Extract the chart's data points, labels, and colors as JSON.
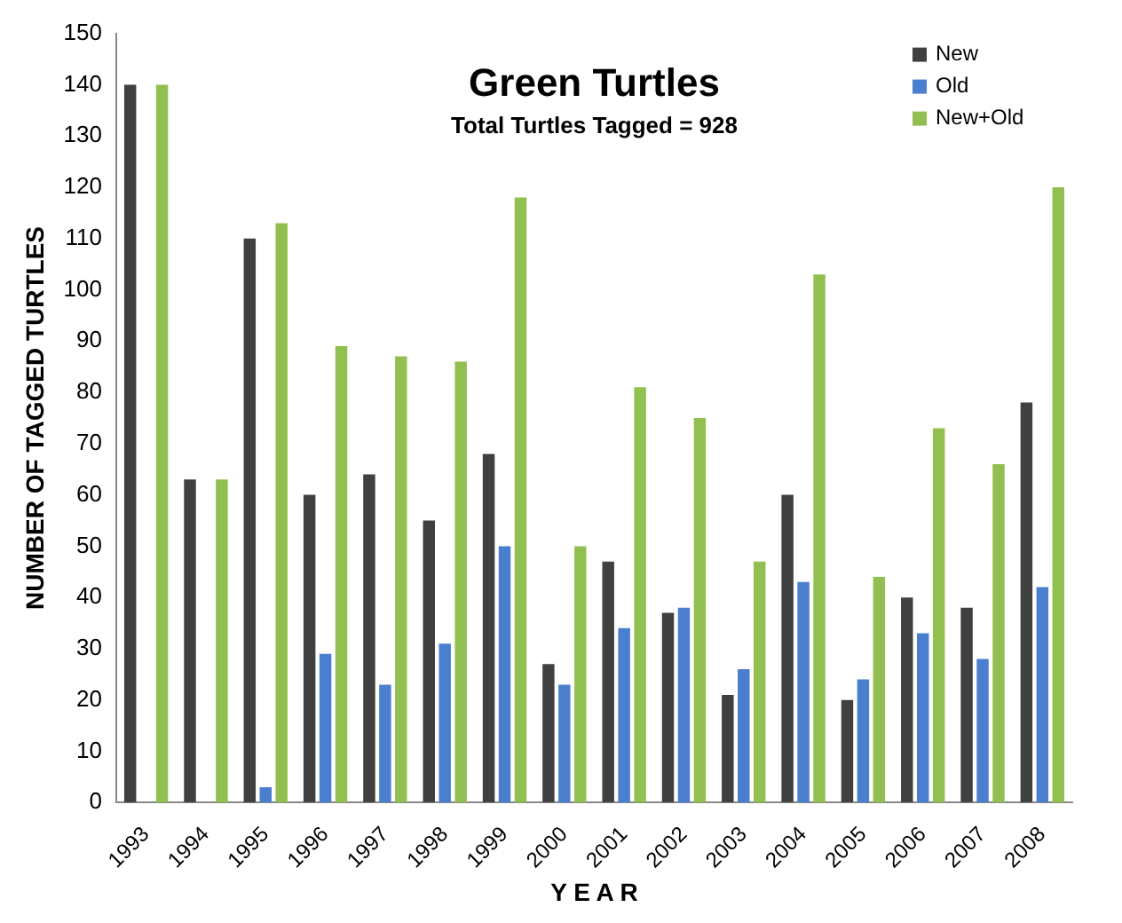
{
  "chart_data": {
    "type": "bar",
    "title": "Green Turtles",
    "subtitle": "Total Turtles Tagged = 928",
    "xlabel": "Y E A R",
    "ylabel": "NUMBER OF TAGGED TURTLES",
    "categories": [
      "1993",
      "1994",
      "1995",
      "1996",
      "1997",
      "1998",
      "1999",
      "2000",
      "2001",
      "2002",
      "2003",
      "2004",
      "2005",
      "2006",
      "2007",
      "2008"
    ],
    "series": [
      {
        "name": "New",
        "color": "#404040",
        "values": [
          140,
          63,
          110,
          60,
          64,
          55,
          68,
          27,
          47,
          37,
          21,
          60,
          20,
          40,
          38,
          78
        ]
      },
      {
        "name": "Old",
        "color": "#4a7fd0",
        "values": [
          0,
          0,
          3,
          29,
          23,
          31,
          50,
          23,
          34,
          38,
          26,
          43,
          24,
          33,
          28,
          42
        ]
      },
      {
        "name": "New+Old",
        "color": "#92c050",
        "values": [
          140,
          63,
          113,
          89,
          87,
          86,
          118,
          50,
          81,
          75,
          47,
          103,
          44,
          73,
          66,
          120
        ]
      }
    ],
    "ylim": [
      0,
      150
    ],
    "yticks": [
      0,
      10,
      20,
      30,
      40,
      50,
      60,
      70,
      80,
      90,
      100,
      110,
      120,
      130,
      140,
      150
    ],
    "grid": false,
    "legend": "top right"
  }
}
